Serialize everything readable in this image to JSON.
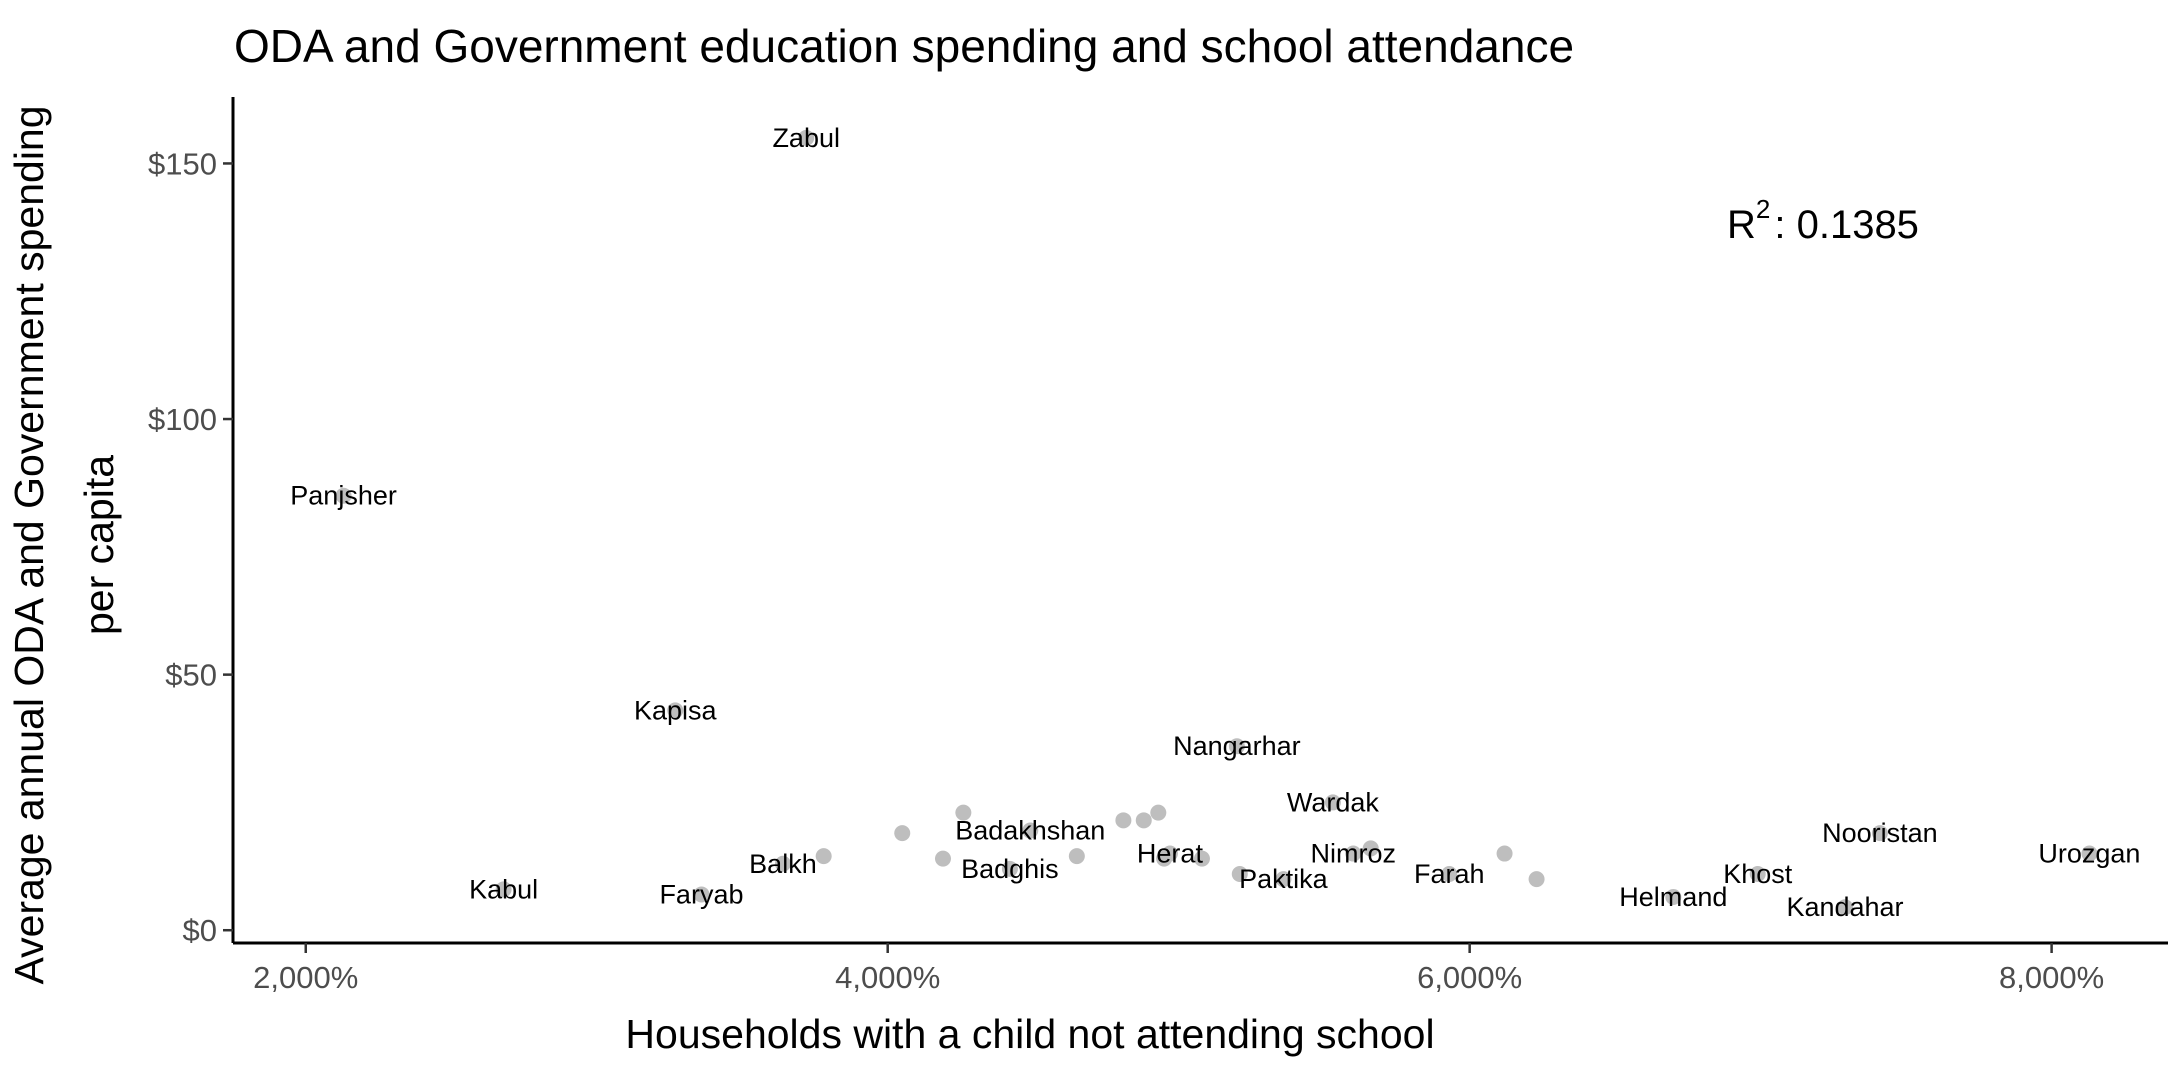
{
  "chart_data": {
    "type": "scatter",
    "title": "ODA and Government education spending and school attendance",
    "xlabel": "Households with a child not attending school",
    "ylabel_lines": [
      "Average annual ODA and Government spending",
      "per capita"
    ],
    "xlim": [
      1750,
      8400
    ],
    "ylim": [
      -2.5,
      163
    ],
    "x_ticks": [
      2000,
      4000,
      6000,
      8000
    ],
    "x_tick_labels": [
      "2,000%",
      "4,000%",
      "6,000%",
      "8,000%"
    ],
    "y_ticks": [
      0,
      50,
      100,
      150
    ],
    "y_tick_labels": [
      "$0",
      "$50",
      "$100",
      "$150"
    ],
    "point_color": "#bebebe",
    "annotation": {
      "r2_label": "R",
      "r2_sup": "2",
      "r2_value": ": 0.1385"
    },
    "grid": false,
    "points": [
      {
        "label": "Zabul",
        "x": 3720,
        "y": 155
      },
      {
        "label": "Panjsher",
        "x": 2130,
        "y": 85
      },
      {
        "label": "Kapisa",
        "x": 3270,
        "y": 43
      },
      {
        "label": "Kabul",
        "x": 2680,
        "y": 8
      },
      {
        "label": "Faryab",
        "x": 3360,
        "y": 7
      },
      {
        "label": "Balkh",
        "x": 3640,
        "y": 13
      },
      {
        "label": "",
        "x": 3780,
        "y": 14.5
      },
      {
        "label": "",
        "x": 4050,
        "y": 19
      },
      {
        "label": "",
        "x": 4190,
        "y": 14
      },
      {
        "label": "",
        "x": 4260,
        "y": 23
      },
      {
        "label": "Badakhshan",
        "x": 4490,
        "y": 19.5
      },
      {
        "label": "Badghis",
        "x": 4420,
        "y": 12
      },
      {
        "label": "",
        "x": 4650,
        "y": 14.5
      },
      {
        "label": "",
        "x": 4810,
        "y": 21.5
      },
      {
        "label": "",
        "x": 4880,
        "y": 21.5
      },
      {
        "label": "",
        "x": 4930,
        "y": 23
      },
      {
        "label": "Herat",
        "x": 4970,
        "y": 15
      },
      {
        "label": "",
        "x": 4950,
        "y": 14
      },
      {
        "label": "",
        "x": 5080,
        "y": 14
      },
      {
        "label": "Nangarhar",
        "x": 5200,
        "y": 36
      },
      {
        "label": "",
        "x": 5210,
        "y": 11
      },
      {
        "label": "Paktika",
        "x": 5360,
        "y": 10
      },
      {
        "label": "Wardak",
        "x": 5530,
        "y": 25
      },
      {
        "label": "Nimroz",
        "x": 5600,
        "y": 15
      },
      {
        "label": "",
        "x": 5660,
        "y": 16
      },
      {
        "label": "Farah",
        "x": 5930,
        "y": 11
      },
      {
        "label": "",
        "x": 6120,
        "y": 15
      },
      {
        "label": "",
        "x": 6230,
        "y": 10
      },
      {
        "label": "Helmand",
        "x": 6700,
        "y": 6.5
      },
      {
        "label": "Khost",
        "x": 6990,
        "y": 11
      },
      {
        "label": "Nooristan",
        "x": 7410,
        "y": 19
      },
      {
        "label": "Kandahar",
        "x": 7290,
        "y": 4.5
      },
      {
        "label": "Urozgan",
        "x": 8130,
        "y": 15
      }
    ]
  }
}
